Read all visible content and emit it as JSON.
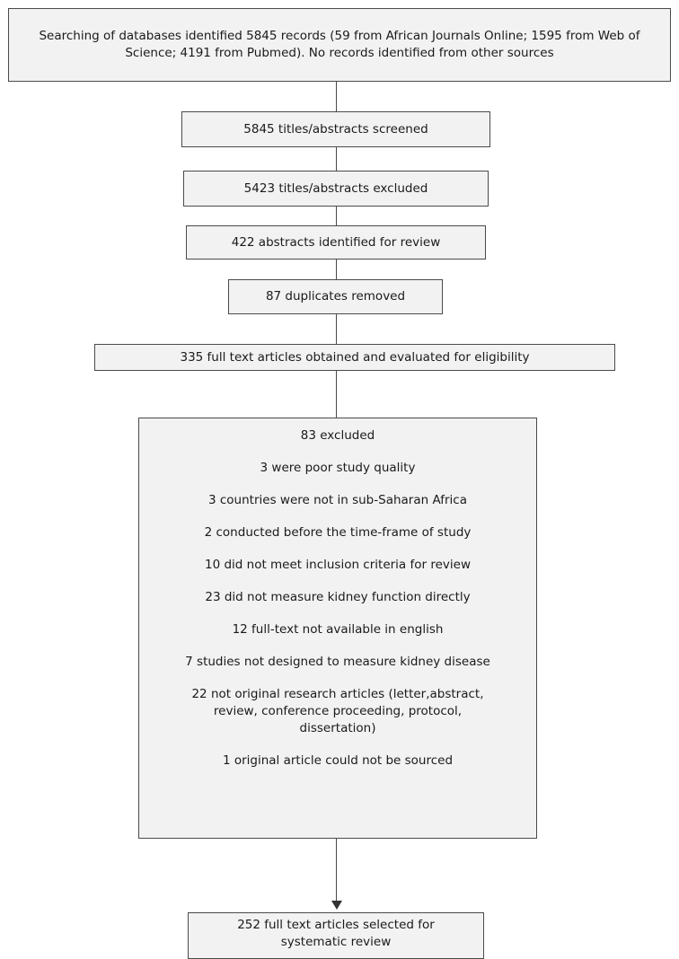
{
  "flow": {
    "search": "Searching of databases identified 5845 records (59 from African Journals Online; 1595 from Web of Science; 4191 from Pubmed). No records identified from other sources",
    "screened": "5845 titles/abstracts screened",
    "excluded_titles": "5423 titles/abstracts excluded",
    "identified": "422 abstracts identified for review",
    "duplicates": "87 duplicates removed",
    "fulltext": "335 full text articles obtained and evaluated for eligibility",
    "exclusions": {
      "title": "83 excluded",
      "items": [
        "3 were poor study quality",
        "3 countries were not in sub-Saharan Africa",
        "2 conducted before the time-frame of study",
        "10 did not meet inclusion criteria for review",
        "23 did not measure kidney function directly",
        "12 full-text not available in english",
        "7 studies not designed to measure kidney disease",
        "22 not original research articles (letter,abstract, review, conference proceeding, protocol, dissertation)",
        "1 original article could not be sourced"
      ]
    },
    "selected": "252 full text articles selected for systematic review"
  }
}
